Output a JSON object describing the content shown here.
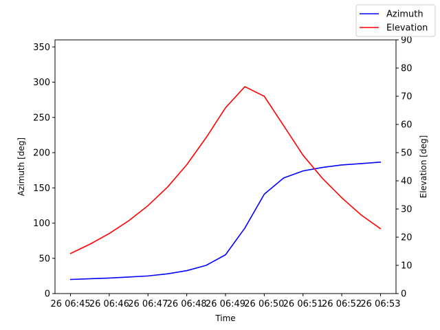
{
  "chart_data": {
    "type": "line",
    "title": "",
    "xlabel": "Time",
    "y_left_label": "Azimuth [deg]",
    "y_right_label": "Elevation [deg]",
    "x_tick_labels": [
      "26 06:45",
      "26 06:46",
      "26 06:47",
      "26 06:48",
      "26 06:49",
      "26 06:50",
      "26 06:51",
      "26 06:52",
      "26 06:53"
    ],
    "x_minutes": [
      0,
      0.5,
      1,
      1.5,
      2,
      2.5,
      3,
      3.5,
      4,
      4.5,
      5,
      5.5,
      6,
      6.5,
      7,
      7.5,
      8
    ],
    "y_left_lim": [
      0,
      360
    ],
    "y_left_ticks": [
      0,
      50,
      100,
      150,
      200,
      250,
      300,
      350
    ],
    "y_right_lim": [
      0,
      90
    ],
    "y_right_ticks": [
      0,
      10,
      20,
      30,
      40,
      50,
      60,
      70,
      80,
      90
    ],
    "legend_position": "top-right",
    "grid": false,
    "series": [
      {
        "name": "Azimuth",
        "axis": "left",
        "color": "#0000ff",
        "values": [
          20,
          21,
          22,
          23.5,
          25,
          28,
          32.5,
          40,
          55,
          93,
          141,
          164,
          174,
          179,
          182.5,
          184.5,
          186.5
        ]
      },
      {
        "name": "Elevation",
        "axis": "right",
        "color": "#ff0000",
        "values": [
          14.2,
          17.5,
          21.3,
          25.8,
          31.2,
          37.7,
          45.7,
          55.3,
          65.9,
          73.4,
          70.0,
          59.6,
          49.1,
          40.9,
          34.0,
          27.9,
          23.0
        ]
      }
    ]
  }
}
